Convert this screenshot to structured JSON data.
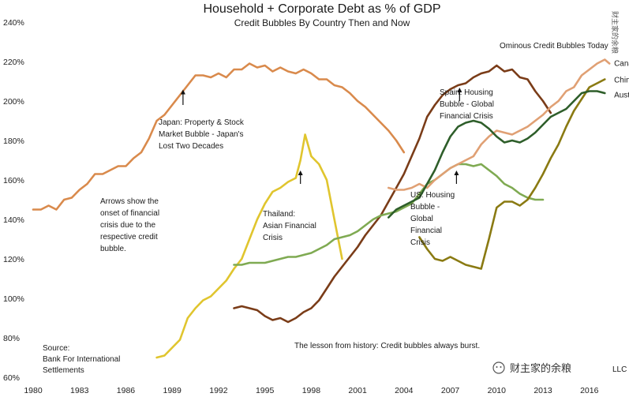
{
  "chart_data": {
    "type": "line",
    "title": "Household + Corporate Debt as % of GDP",
    "subtitle": "Credit Bubbles By Country Then and Now",
    "xlabel": "",
    "ylabel": "",
    "xlim": [
      1980,
      2017.8
    ],
    "ylim": [
      60,
      240
    ],
    "x_ticks": [
      "1980",
      "1983",
      "1986",
      "1989",
      "1992",
      "1995",
      "1998",
      "2001",
      "2004",
      "2007",
      "2010",
      "2013",
      "2016"
    ],
    "y_ticks": [
      "60%",
      "80%",
      "100%",
      "120%",
      "140%",
      "160%",
      "180%",
      "200%",
      "220%",
      "240%"
    ],
    "grid": false,
    "series": [
      {
        "name": "Japan",
        "color": "#d98a4c",
        "x": [
          1980,
          1980.5,
          1981,
          1981.5,
          1982,
          1982.5,
          1983,
          1983.5,
          1984,
          1984.5,
          1985,
          1985.5,
          1986,
          1986.5,
          1987,
          1987.5,
          1988,
          1988.5,
          1989,
          1989.5,
          1990,
          1990.5,
          1991,
          1991.5,
          1992,
          1992.5,
          1993,
          1993.5,
          1994,
          1994.5,
          1995,
          1995.5,
          1996,
          1996.5,
          1997,
          1997.5,
          1998,
          1998.5,
          1999,
          1999.5,
          2000,
          2000.5,
          2001,
          2001.5,
          2002,
          2002.5,
          2003,
          2003.5,
          2004
        ],
        "values": [
          145,
          145,
          147,
          145,
          150,
          151,
          155,
          158,
          163,
          163,
          165,
          167,
          167,
          171,
          174,
          181,
          190,
          193,
          198,
          203,
          208,
          213,
          213,
          212,
          214,
          212,
          216,
          216,
          219,
          217,
          218,
          215,
          217,
          215,
          214,
          216,
          214,
          211,
          211,
          208,
          207,
          204,
          200,
          197,
          193,
          189,
          185,
          180,
          174
        ]
      },
      {
        "name": "Thailand",
        "color": "#e0c52e",
        "x": [
          1988,
          1988.5,
          1989,
          1989.5,
          1990,
          1990.5,
          1991,
          1991.5,
          1992,
          1992.5,
          1993,
          1993.5,
          1994,
          1994.5,
          1995,
          1995.5,
          1996,
          1996.5,
          1997,
          1997.3,
          1997.6,
          1998,
          1998.5,
          1999,
          1999.5,
          2000
        ],
        "values": [
          70,
          71,
          75,
          79,
          90,
          95,
          99,
          101,
          105,
          109,
          115,
          120,
          130,
          140,
          148,
          154,
          156,
          159,
          161,
          170,
          183,
          172,
          168,
          160,
          140,
          120
        ]
      },
      {
        "name": "Spain",
        "color": "#7a3c18",
        "x": [
          1993,
          1993.5,
          1994,
          1994.5,
          1995,
          1995.5,
          1996,
          1996.5,
          1997,
          1997.5,
          1998,
          1998.5,
          1999,
          1999.5,
          2000,
          2000.5,
          2001,
          2001.5,
          2002,
          2002.5,
          2003,
          2003.5,
          2004,
          2004.5,
          2005,
          2005.5,
          2006,
          2006.5,
          2007,
          2007.5,
          2008,
          2008.5,
          2009,
          2009.5,
          2010,
          2010.5,
          2011,
          2011.5,
          2012,
          2012.5,
          2013,
          2013.5
        ],
        "values": [
          95,
          96,
          95,
          94,
          91,
          89,
          90,
          88,
          90,
          93,
          95,
          99,
          105,
          111,
          116,
          121,
          126,
          132,
          137,
          142,
          149,
          156,
          163,
          172,
          181,
          192,
          198,
          203,
          206,
          208,
          209,
          212,
          214,
          215,
          218,
          215,
          216,
          212,
          211,
          205,
          200,
          194
        ]
      },
      {
        "name": "US",
        "color": "#7faa52",
        "x": [
          1993,
          1993.5,
          1994,
          1994.5,
          1995,
          1995.5,
          1996,
          1996.5,
          1997,
          1997.5,
          1998,
          1998.5,
          1999,
          1999.5,
          2000,
          2000.5,
          2001,
          2001.5,
          2002,
          2002.5,
          2003,
          2003.5,
          2004,
          2004.5,
          2005,
          2005.5,
          2006,
          2006.5,
          2007,
          2007.5,
          2008,
          2008.5,
          2009,
          2009.5,
          2010,
          2010.5,
          2011,
          2011.5,
          2012,
          2012.5,
          2013
        ],
        "values": [
          117,
          117,
          118,
          118,
          118,
          119,
          120,
          121,
          121,
          122,
          123,
          125,
          127,
          130,
          131,
          132,
          134,
          137,
          140,
          142,
          143,
          144,
          146,
          148,
          153,
          158,
          160,
          163,
          166,
          168,
          168,
          167,
          168,
          165,
          162,
          158,
          156,
          153,
          151,
          150,
          150
        ]
      },
      {
        "name": "Canada",
        "color": "#e0a074",
        "x": [
          2003,
          2003.5,
          2004,
          2004.5,
          2005,
          2005.5,
          2006,
          2006.5,
          2007,
          2007.5,
          2008,
          2008.5,
          2009,
          2009.5,
          2010,
          2010.5,
          2011,
          2011.5,
          2012,
          2012.5,
          2013,
          2013.5,
          2014,
          2014.5,
          2015,
          2015.5,
          2016,
          2016.5,
          2017,
          2017.3
        ],
        "values": [
          156,
          155,
          155,
          156,
          158,
          156,
          160,
          163,
          166,
          168,
          170,
          172,
          178,
          182,
          185,
          184,
          183,
          185,
          187,
          190,
          193,
          197,
          200,
          205,
          207,
          213,
          216,
          219,
          221,
          219
        ]
      },
      {
        "name": "China",
        "color": "#8a7a12",
        "x": [
          2005,
          2005.5,
          2006,
          2006.5,
          2007,
          2007.5,
          2008,
          2008.5,
          2009,
          2009.5,
          2010,
          2010.5,
          2011,
          2011.5,
          2012,
          2012.5,
          2013,
          2013.5,
          2014,
          2014.5,
          2015,
          2015.5,
          2016,
          2016.5,
          2017
        ],
        "values": [
          131,
          125,
          120,
          119,
          121,
          119,
          117,
          116,
          115,
          130,
          146,
          149,
          149,
          147,
          150,
          156,
          163,
          171,
          178,
          187,
          195,
          201,
          207,
          209,
          211
        ]
      },
      {
        "name": "Australia",
        "color": "#2e5e2a",
        "x": [
          2003,
          2003.5,
          2004,
          2004.5,
          2005,
          2005.5,
          2006,
          2006.5,
          2007,
          2007.5,
          2008,
          2008.5,
          2009,
          2009.5,
          2010,
          2010.5,
          2011,
          2011.5,
          2012,
          2012.5,
          2013,
          2013.5,
          2014,
          2014.5,
          2015,
          2015.5,
          2016,
          2016.5,
          2017
        ],
        "values": [
          141,
          145,
          147,
          149,
          151,
          158,
          165,
          174,
          182,
          187,
          189,
          190,
          189,
          186,
          182,
          179,
          180,
          179,
          181,
          184,
          188,
          192,
          194,
          196,
          200,
          204,
          205,
          205,
          204
        ]
      }
    ],
    "series_labels": [
      {
        "name": "Canada",
        "text": "Canada",
        "anchor_x": 2017.6,
        "anchor_y": 219.5
      },
      {
        "name": "China",
        "text": "China",
        "anchor_x": 2017.6,
        "anchor_y": 211
      },
      {
        "name": "Australia",
        "text": "Australia",
        "anchor_x": 2017.6,
        "anchor_y": 203.5
      }
    ],
    "arrows": [
      {
        "name": "japan",
        "x": 1989.7,
        "y_from": 198,
        "y_to": 205
      },
      {
        "name": "thailand",
        "x": 1997.3,
        "y_from": 158,
        "y_to": 164
      },
      {
        "name": "spain",
        "x": 2007.6,
        "y_from": 200,
        "y_to": 206
      },
      {
        "name": "us",
        "x": 2007.4,
        "y_from": 158,
        "y_to": 164
      }
    ],
    "annotations": {
      "ominous": "Ominous Credit Bubbles Today",
      "japan": [
        "Japan: Property & Stock",
        "Market Bubble - Japan's",
        "Lost Two Decades"
      ],
      "arrows_note": [
        "Arrows show the",
        "onset of financial",
        "crisis due to the",
        "respective credit",
        "bubble."
      ],
      "thailand": [
        "Thailand:",
        "Asian Financial",
        "Crisis"
      ],
      "spain": [
        "Spain: Housing",
        "Bubble - Global",
        "Financial Crisis"
      ],
      "us": [
        "US: Housing",
        "Bubble -",
        "Global",
        "Financial",
        "Crisis"
      ],
      "source": [
        "Source:",
        "Bank For International",
        "Settlements"
      ],
      "lesson": "The lesson from history: Credit bubbles always burst.",
      "copyright": "LLC"
    },
    "watermark": {
      "text": "财主家的余粮",
      "vertical": "财主家的余粮"
    }
  }
}
